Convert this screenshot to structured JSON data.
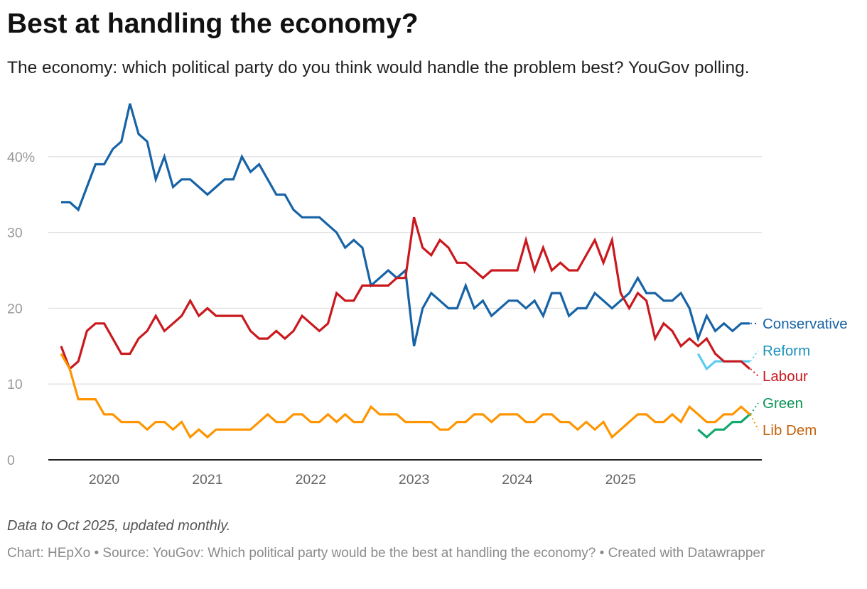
{
  "chart_data": {
    "type": "line",
    "title": "Best at handling the economy?",
    "subtitle": "The economy: which political party do you think would handle the problem best? YouGov polling.",
    "x_start": "2019-08",
    "x_end": "2025-10",
    "n_points": 81,
    "xlabel": "",
    "ylabel": "",
    "ylim": [
      0,
      45
    ],
    "y_ticks": [
      0,
      10,
      20,
      30,
      40
    ],
    "y_tick_labels": [
      "0",
      "10",
      "20",
      "30",
      "40%"
    ],
    "x_ticks": [
      "2020",
      "2021",
      "2022",
      "2023",
      "2024",
      "2025"
    ],
    "grid": true,
    "legend": "direct labels at right",
    "series": [
      {
        "name": "Conservative",
        "color": "#1763a6",
        "label_color": "#1763a6",
        "values": [
          34,
          34,
          33,
          36,
          39,
          39,
          41,
          42,
          47,
          43,
          42,
          37,
          40,
          36,
          37,
          37,
          36,
          35,
          36,
          37,
          37,
          40,
          38,
          39,
          37,
          35,
          35,
          33,
          32,
          32,
          32,
          31,
          30,
          28,
          29,
          28,
          23,
          24,
          25,
          24,
          25,
          15,
          20,
          22,
          21,
          20,
          20,
          23,
          20,
          21,
          19,
          20,
          21,
          21,
          20,
          21,
          19,
          22,
          22,
          19,
          20,
          20,
          22,
          21,
          20,
          21,
          22,
          24,
          22,
          22,
          21,
          21,
          22,
          20,
          16,
          19,
          17,
          18,
          17,
          18,
          18
        ]
      },
      {
        "name": "Reform",
        "color": "#5ccbf2",
        "label_color": "#1d92bd",
        "values": [
          null,
          null,
          null,
          null,
          null,
          null,
          null,
          null,
          null,
          null,
          null,
          null,
          null,
          null,
          null,
          null,
          null,
          null,
          null,
          null,
          null,
          null,
          null,
          null,
          null,
          null,
          null,
          null,
          null,
          null,
          null,
          null,
          null,
          null,
          null,
          null,
          null,
          null,
          null,
          null,
          null,
          null,
          null,
          null,
          null,
          null,
          null,
          null,
          null,
          null,
          null,
          null,
          null,
          null,
          null,
          null,
          null,
          null,
          null,
          null,
          null,
          null,
          null,
          null,
          null,
          null,
          null,
          null,
          null,
          null,
          null,
          null,
          null,
          null,
          14,
          12,
          13,
          13,
          13,
          13,
          13
        ]
      },
      {
        "name": "Labour",
        "color": "#c9191e",
        "label_color": "#c9191e",
        "values": [
          15,
          12,
          13,
          17,
          18,
          18,
          16,
          14,
          14,
          16,
          17,
          19,
          17,
          18,
          19,
          21,
          19,
          20,
          19,
          19,
          19,
          19,
          17,
          16,
          16,
          17,
          16,
          17,
          19,
          18,
          17,
          18,
          22,
          21,
          21,
          23,
          23,
          23,
          23,
          24,
          24,
          32,
          28,
          27,
          29,
          28,
          26,
          26,
          25,
          24,
          25,
          25,
          25,
          25,
          29,
          25,
          28,
          25,
          26,
          25,
          25,
          27,
          29,
          26,
          29,
          22,
          20,
          22,
          21,
          16,
          18,
          17,
          15,
          16,
          15,
          16,
          14,
          13,
          13,
          13,
          12
        ]
      },
      {
        "name": "Green",
        "color": "#13a86d",
        "label_color": "#0b9358",
        "values": [
          null,
          null,
          null,
          null,
          null,
          null,
          null,
          null,
          null,
          null,
          null,
          null,
          null,
          null,
          null,
          null,
          null,
          null,
          null,
          null,
          null,
          null,
          null,
          null,
          null,
          null,
          null,
          null,
          null,
          null,
          null,
          null,
          null,
          null,
          null,
          null,
          null,
          null,
          null,
          null,
          null,
          null,
          null,
          null,
          null,
          null,
          null,
          null,
          null,
          null,
          null,
          null,
          null,
          null,
          null,
          null,
          null,
          null,
          null,
          null,
          null,
          null,
          null,
          null,
          null,
          null,
          null,
          null,
          null,
          null,
          null,
          null,
          null,
          null,
          4,
          3,
          4,
          4,
          5,
          5,
          6
        ]
      },
      {
        "name": "Lib Dem",
        "color": "#ff9500",
        "label_color": "#c4620a",
        "values": [
          14,
          12,
          8,
          8,
          8,
          6,
          6,
          5,
          5,
          5,
          4,
          5,
          5,
          4,
          5,
          3,
          4,
          3,
          4,
          4,
          4,
          4,
          4,
          5,
          6,
          5,
          5,
          6,
          6,
          5,
          5,
          6,
          5,
          6,
          5,
          5,
          7,
          6,
          6,
          6,
          5,
          5,
          5,
          5,
          4,
          4,
          5,
          5,
          6,
          6,
          5,
          6,
          6,
          6,
          5,
          5,
          6,
          6,
          5,
          5,
          4,
          5,
          4,
          5,
          3,
          4,
          5,
          6,
          6,
          5,
          5,
          6,
          5,
          7,
          6,
          5,
          5,
          6,
          6,
          7,
          6
        ]
      }
    ]
  },
  "footer": {
    "note": "Data to Oct 2025, updated monthly.",
    "source": "Chart: HEpXo • Source: YouGov: Which political party would be the best at handling the economy? • Created with Datawrapper"
  }
}
